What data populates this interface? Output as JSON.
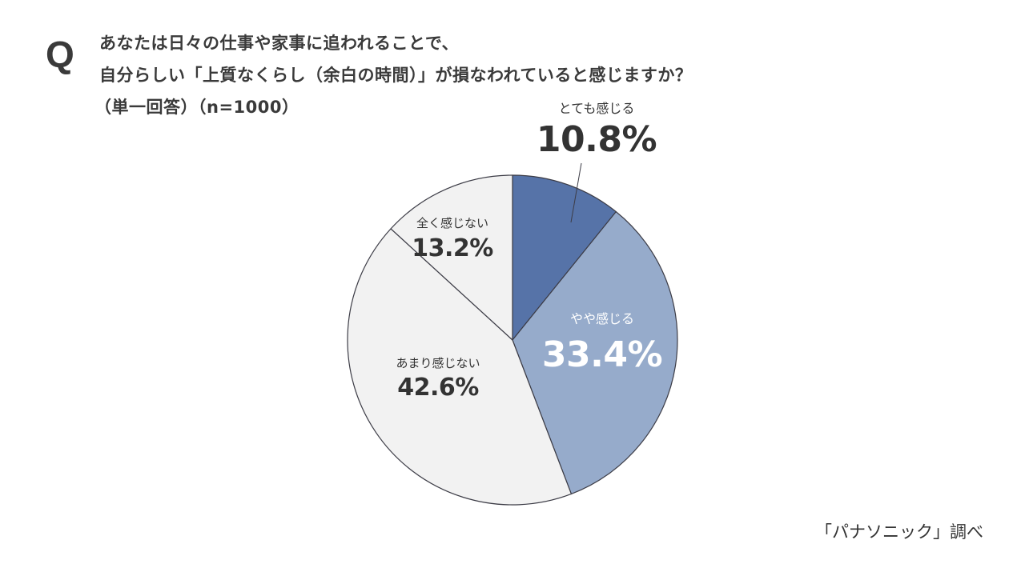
{
  "header": {
    "q_mark": "Q",
    "question_line1": "あなたは日々の仕事や家事に追われることで、",
    "question_line2": "自分らしい「上質なくらし（余白の時間）」が損なわれていると感じますか？",
    "question_line3": "（単一回答）（n=1000）"
  },
  "source": "「パナソニック」調べ",
  "colors": {
    "totemo": "#5673a8",
    "yaya": "#96abcb",
    "amari": "#f2f2f2",
    "mattaku": "#f2f2f2",
    "stroke": "#3c3c46",
    "text": "#333333"
  },
  "labels": {
    "totemo": {
      "category": "とても感じる",
      "percent": "10.8%"
    },
    "yaya": {
      "category": "やや感じる",
      "percent": "33.4%"
    },
    "amari": {
      "category": "あまり感じない",
      "percent": "42.6%"
    },
    "mattaku": {
      "category": "全く感じない",
      "percent": "13.2%"
    }
  },
  "chart_data": {
    "type": "pie",
    "title": "あなたは日々の仕事や家事に追われることで、自分らしい「上質なくらし（余白の時間）」が損なわれていると感じますか？（単一回答）（n=1000）",
    "categories": [
      "とても感じる",
      "やや感じる",
      "あまり感じない",
      "全く感じない"
    ],
    "values": [
      10.8,
      33.4,
      42.6,
      13.2
    ],
    "unit": "%",
    "n": 1000,
    "start_angle": "12 o'clock, clockwise",
    "colors": [
      "#5673a8",
      "#96abcb",
      "#f2f2f2",
      "#f2f2f2"
    ],
    "source": "「パナソニック」調べ"
  }
}
